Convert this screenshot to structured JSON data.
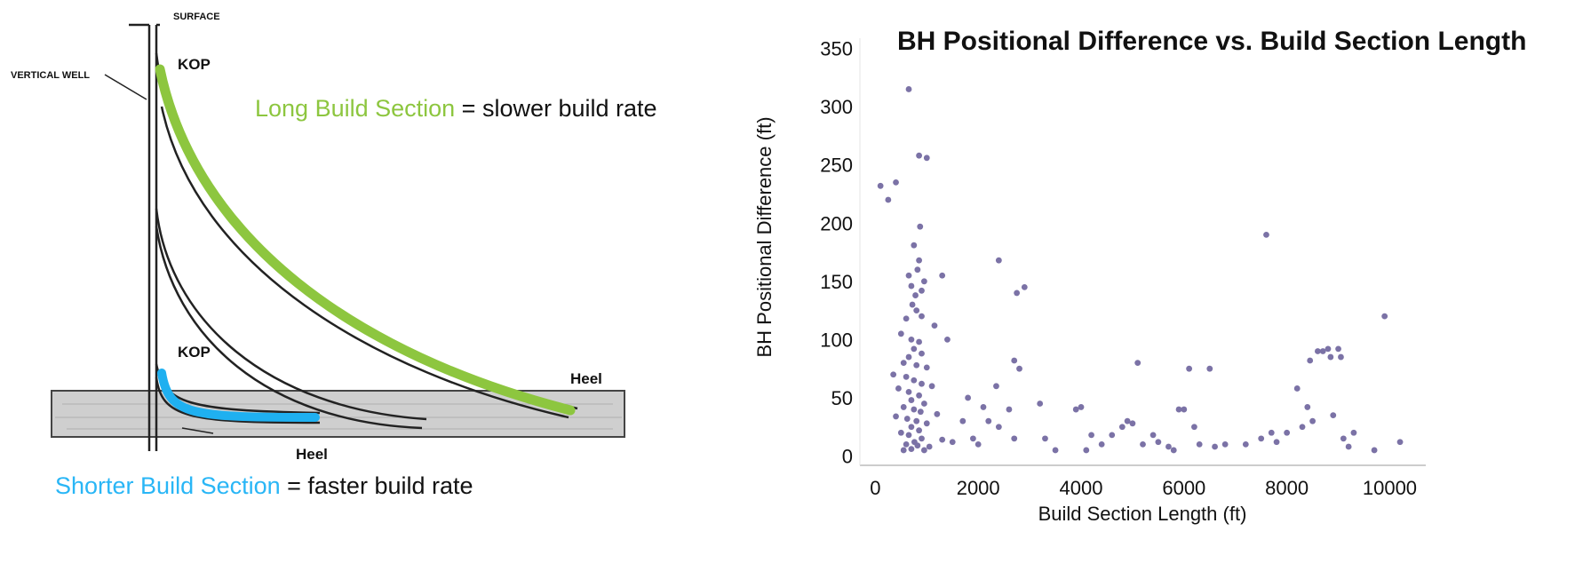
{
  "diagram": {
    "surface_label": "SURFACE",
    "vertical_well_label": "VERTICAL WELL",
    "kop_upper_label": "KOP",
    "kop_lower_label": "KOP",
    "heel_right_label": "Heel",
    "heel_lower_label": "Heel",
    "long_caption": {
      "colored": "Long Build Section",
      "rest": " = slower build rate",
      "color": "#8dc63f"
    },
    "short_caption": {
      "colored": "Shorter Build Section",
      "rest": " = faster build rate",
      "color": "#29b6f6"
    },
    "long_curve_color": "#8dc63f",
    "short_curve_color": "#1fb0f0",
    "formation_fill": "#cfcfcf"
  },
  "chart_data": {
    "type": "scatter",
    "title": "BH Positional Difference vs. Build Section Length",
    "xlabel": "Build Section Length (ft)",
    "ylabel": "BH Positional Difference (ft)",
    "xlim": [
      -300,
      10700
    ],
    "ylim": [
      -8,
      355
    ],
    "xticks": [
      0,
      2000,
      4000,
      6000,
      8000,
      10000
    ],
    "yticks": [
      0,
      50,
      100,
      150,
      200,
      250,
      300,
      350
    ],
    "grid": false,
    "marker_color": "#7b72a6",
    "points": [
      [
        100,
        232
      ],
      [
        250,
        220
      ],
      [
        400,
        235
      ],
      [
        650,
        315
      ],
      [
        850,
        258
      ],
      [
        1000,
        256
      ],
      [
        870,
        197
      ],
      [
        750,
        181
      ],
      [
        850,
        168
      ],
      [
        820,
        160
      ],
      [
        650,
        155
      ],
      [
        1300,
        155
      ],
      [
        700,
        146
      ],
      [
        900,
        142
      ],
      [
        780,
        138
      ],
      [
        950,
        150
      ],
      [
        720,
        130
      ],
      [
        800,
        125
      ],
      [
        900,
        120
      ],
      [
        600,
        118
      ],
      [
        1150,
        112
      ],
      [
        1400,
        100
      ],
      [
        500,
        105
      ],
      [
        700,
        100
      ],
      [
        850,
        98
      ],
      [
        750,
        92
      ],
      [
        900,
        88
      ],
      [
        650,
        85
      ],
      [
        550,
        80
      ],
      [
        800,
        78
      ],
      [
        1000,
        76
      ],
      [
        350,
        70
      ],
      [
        600,
        68
      ],
      [
        750,
        65
      ],
      [
        900,
        62
      ],
      [
        1100,
        60
      ],
      [
        450,
        58
      ],
      [
        650,
        55
      ],
      [
        850,
        52
      ],
      [
        700,
        48
      ],
      [
        950,
        45
      ],
      [
        550,
        42
      ],
      [
        750,
        40
      ],
      [
        880,
        38
      ],
      [
        1200,
        36
      ],
      [
        400,
        34
      ],
      [
        620,
        32
      ],
      [
        800,
        30
      ],
      [
        1000,
        28
      ],
      [
        700,
        25
      ],
      [
        850,
        22
      ],
      [
        500,
        20
      ],
      [
        650,
        18
      ],
      [
        900,
        15
      ],
      [
        1300,
        14
      ],
      [
        760,
        12
      ],
      [
        600,
        10
      ],
      [
        820,
        9
      ],
      [
        1050,
        8
      ],
      [
        700,
        6
      ],
      [
        950,
        5
      ],
      [
        550,
        5
      ],
      [
        1500,
        12
      ],
      [
        1700,
        30
      ],
      [
        1800,
        50
      ],
      [
        1900,
        15
      ],
      [
        2000,
        10
      ],
      [
        2100,
        42
      ],
      [
        2200,
        30
      ],
      [
        2400,
        25
      ],
      [
        2400,
        168
      ],
      [
        2350,
        60
      ],
      [
        2600,
        40
      ],
      [
        2750,
        140
      ],
      [
        2900,
        145
      ],
      [
        2700,
        82
      ],
      [
        2800,
        75
      ],
      [
        2700,
        15
      ],
      [
        3200,
        45
      ],
      [
        3300,
        15
      ],
      [
        3500,
        5
      ],
      [
        3900,
        40
      ],
      [
        4000,
        42
      ],
      [
        4100,
        5
      ],
      [
        4200,
        18
      ],
      [
        4400,
        10
      ],
      [
        4600,
        18
      ],
      [
        4800,
        25
      ],
      [
        4900,
        30
      ],
      [
        5000,
        28
      ],
      [
        5100,
        80
      ],
      [
        5200,
        10
      ],
      [
        5400,
        18
      ],
      [
        5500,
        12
      ],
      [
        5700,
        8
      ],
      [
        5800,
        5
      ],
      [
        5900,
        40
      ],
      [
        6000,
        40
      ],
      [
        6100,
        75
      ],
      [
        6200,
        25
      ],
      [
        6300,
        10
      ],
      [
        6500,
        75
      ],
      [
        6600,
        8
      ],
      [
        6800,
        10
      ],
      [
        7200,
        10
      ],
      [
        7500,
        15
      ],
      [
        7600,
        190
      ],
      [
        7700,
        20
      ],
      [
        7800,
        12
      ],
      [
        8000,
        20
      ],
      [
        8200,
        58
      ],
      [
        8300,
        25
      ],
      [
        8400,
        42
      ],
      [
        8450,
        82
      ],
      [
        8500,
        30
      ],
      [
        8600,
        90
      ],
      [
        8700,
        90
      ],
      [
        8800,
        92
      ],
      [
        8850,
        85
      ],
      [
        8900,
        35
      ],
      [
        9000,
        92
      ],
      [
        9050,
        85
      ],
      [
        9100,
        15
      ],
      [
        9200,
        8
      ],
      [
        9300,
        20
      ],
      [
        9700,
        5
      ],
      [
        9900,
        120
      ],
      [
        10200,
        12
      ]
    ]
  }
}
